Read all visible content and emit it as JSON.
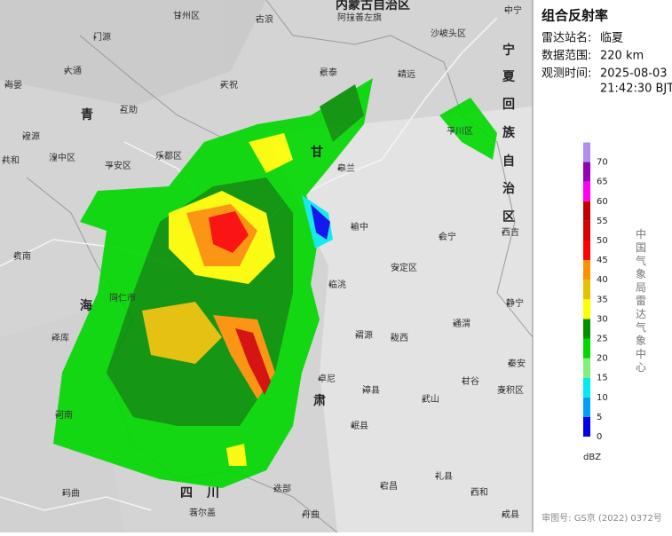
{
  "header": {
    "title": "组合反射率"
  },
  "info": [
    {
      "label": "雷达站名:",
      "value": "临夏"
    },
    {
      "label": "数据范围:",
      "value": "220 km"
    }
  ],
  "observation": {
    "label": "观测时间:",
    "date": "2025-08-03",
    "time": "21:42:30 BJT"
  },
  "legend": {
    "unit": "dBZ",
    "levels": [
      {
        "value": 0,
        "color": "#0000f0"
      },
      {
        "value": 5,
        "color": "#01a0f6"
      },
      {
        "value": 10,
        "color": "#00ecec"
      },
      {
        "value": 15,
        "color": "#7ff07a"
      },
      {
        "value": 20,
        "color": "#00d800"
      },
      {
        "value": 25,
        "color": "#019000"
      },
      {
        "value": 30,
        "color": "#ffff00"
      },
      {
        "value": 35,
        "color": "#e7c000"
      },
      {
        "value": 40,
        "color": "#ff9000"
      },
      {
        "value": 45,
        "color": "#ff0000"
      },
      {
        "value": 50,
        "color": "#d60000"
      },
      {
        "value": 55,
        "color": "#c00000"
      },
      {
        "value": 60,
        "color": "#ff00f0"
      },
      {
        "value": 65,
        "color": "#9600b4"
      },
      {
        "value": 70,
        "color": "#ad90f0"
      }
    ]
  },
  "source": "中国气象局雷达气象中心",
  "footer": "审图号: GS京 (2022) 0372号",
  "regions": [
    "内蒙古自治区",
    "甘",
    "肃",
    "青",
    "海",
    "四",
    "川",
    "宁",
    "夏",
    "回",
    "族",
    "自",
    "治",
    "区"
  ],
  "places": [
    "甘州区",
    "古浪",
    "阿拉善左旗",
    "中宁",
    "门源",
    "沙坡头区",
    "大通",
    "天祝",
    "景泰",
    "靖远",
    "海晏",
    "互助",
    "湟源",
    "乐都区",
    "平安区",
    "皋兰",
    "平川区",
    "共和",
    "湟中区",
    "榆中",
    "会宁",
    "西吉",
    "贵南",
    "安定区",
    "临洮",
    "静宁",
    "同仁市",
    "泽库",
    "渭源",
    "陇西",
    "通渭",
    "秦安",
    "卓尼",
    "甘谷",
    "麦积区",
    "河南",
    "漳县",
    "武山",
    "岷县",
    "宕昌",
    "礼县",
    "西和",
    "舟曲",
    "迭部",
    "玛曲",
    "若尔盖",
    "成县"
  ]
}
